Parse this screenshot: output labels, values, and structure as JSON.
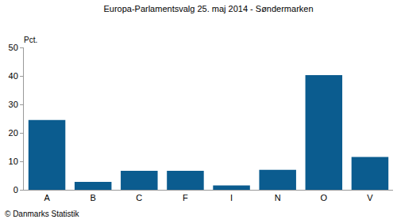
{
  "chart_data": {
    "type": "bar",
    "title": "Europa-Parlamentsvalg 25. maj 2014 - Søndermarken",
    "ylabel": "Pct.",
    "categories": [
      "A",
      "B",
      "C",
      "F",
      "I",
      "N",
      "O",
      "V"
    ],
    "values": [
      24.5,
      2.8,
      6.7,
      6.7,
      1.5,
      7.0,
      40.3,
      11.5
    ],
    "color": "#0b5c8f",
    "ylim": [
      0,
      50
    ],
    "yticks": [
      0,
      10,
      20,
      30,
      40,
      50
    ],
    "grid": false,
    "annotations": [
      {
        "text": "© Danmarks Statistik"
      }
    ]
  }
}
